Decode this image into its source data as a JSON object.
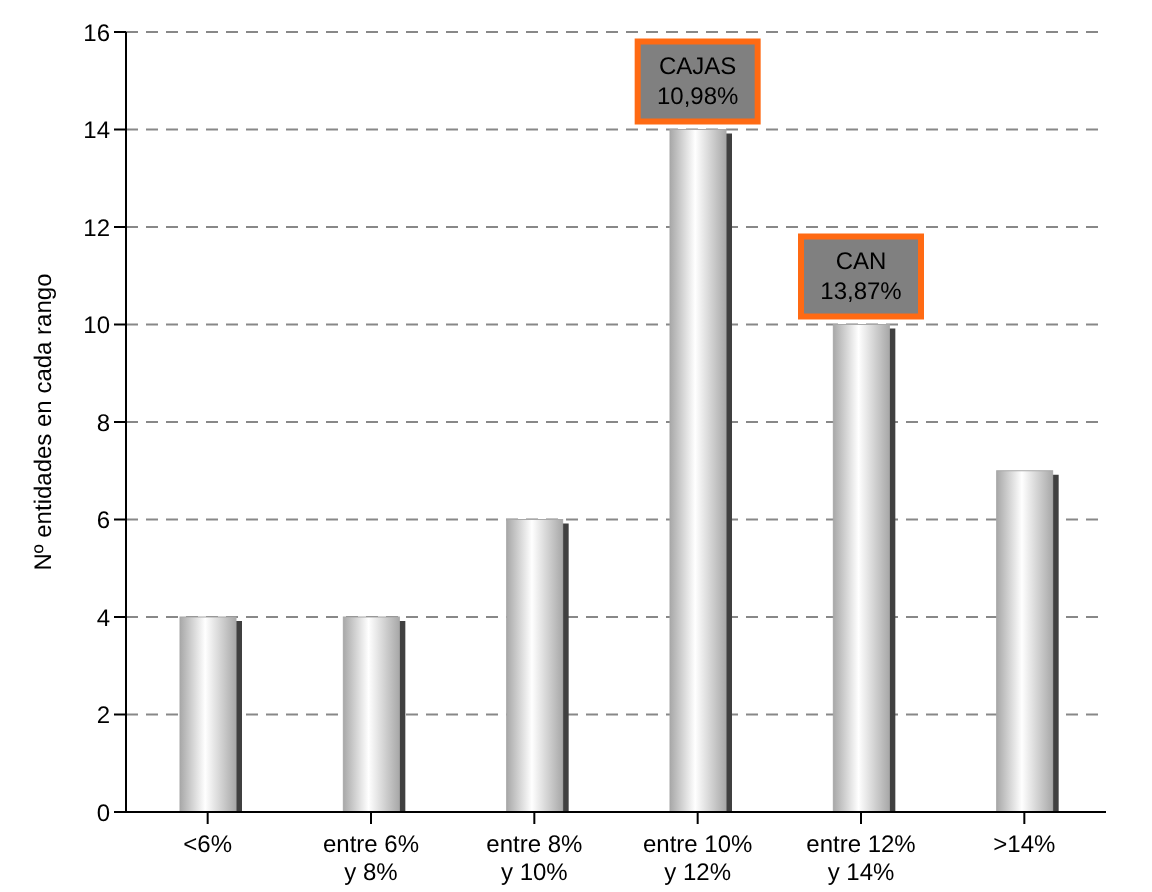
{
  "chart_data": {
    "type": "bar",
    "ylabel": "Nº entidades en cada rango",
    "categories": [
      "<6%",
      "entre 6% y 8%",
      "entre 8% y 10%",
      "entre 10% y 12%",
      "entre 12% y 14%",
      ">14%"
    ],
    "values": [
      4,
      4,
      6,
      14,
      10,
      7
    ],
    "color": "#a8a8a8",
    "ylim": [
      0,
      16
    ],
    "yticks": [
      0,
      2,
      4,
      6,
      8,
      10,
      12,
      14,
      16
    ],
    "grid": "y",
    "annotations": [
      {
        "text": "CAJAS 10,98%",
        "x": "entre 10% y 12%",
        "y": 14
      },
      {
        "text": "CAN 13,87%",
        "x": "entre 12% y 14%",
        "y": 10
      }
    ]
  }
}
